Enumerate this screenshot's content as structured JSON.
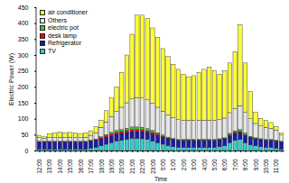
{
  "chart_data": {
    "type": "bar",
    "stacked": true,
    "grid": false,
    "legend": "top-left",
    "x_label": "Time",
    "y_label": "Electric Power (W)",
    "categories": [
      "12:00",
      null,
      "13:00",
      null,
      "14:00",
      null,
      "15:00",
      null,
      "16:00",
      null,
      "17:00",
      null,
      "18:00",
      null,
      "19:00",
      null,
      "20:00",
      null,
      "21:00",
      null,
      "22:00",
      null,
      "23:00",
      null,
      "0:00",
      null,
      "1:00",
      null,
      "2:00",
      null,
      "3:00",
      null,
      "4:00",
      null,
      "5:00",
      null,
      "6:00",
      null,
      "7:00",
      null,
      "8:00",
      null,
      "9:00",
      null,
      "10:00",
      null,
      "11:00",
      null
    ],
    "ylim": [
      0,
      450
    ],
    "yticks": [
      0,
      50,
      100,
      150,
      200,
      250,
      300,
      350,
      400,
      450
    ],
    "series": [
      {
        "name": "TV",
        "color": "#33cccc",
        "values": [
          5,
          5,
          5,
          5,
          5,
          5,
          5,
          5,
          5,
          5,
          8,
          10,
          15,
          20,
          25,
          30,
          32,
          35,
          38,
          38,
          37,
          35,
          30,
          25,
          20,
          15,
          12,
          10,
          10,
          10,
          10,
          10,
          10,
          10,
          10,
          12,
          15,
          25,
          32,
          35,
          25,
          18,
          15,
          12,
          10,
          10,
          8,
          5
        ]
      },
      {
        "name": "Refrigerator",
        "color": "#1a1aa6",
        "values": [
          22,
          22,
          22,
          22,
          22,
          22,
          22,
          22,
          22,
          22,
          22,
          22,
          22,
          22,
          22,
          22,
          22,
          22,
          22,
          22,
          22,
          22,
          22,
          22,
          22,
          22,
          22,
          22,
          22,
          22,
          22,
          22,
          22,
          22,
          22,
          22,
          22,
          22,
          22,
          22,
          22,
          22,
          22,
          22,
          22,
          22,
          22,
          22
        ]
      },
      {
        "name": "desk lamp",
        "color": "#ff0000",
        "values": [
          1,
          1,
          1,
          1,
          1,
          1,
          1,
          1,
          1,
          1,
          1,
          2,
          3,
          4,
          5,
          5,
          6,
          6,
          6,
          6,
          6,
          5,
          5,
          4,
          3,
          2,
          2,
          1,
          1,
          1,
          1,
          1,
          1,
          1,
          1,
          1,
          1,
          3,
          3,
          3,
          3,
          2,
          1,
          1,
          1,
          1,
          1,
          1
        ]
      },
      {
        "name": "electric pot",
        "color": "#33cc33",
        "values": [
          1,
          1,
          1,
          1,
          1,
          1,
          1,
          1,
          1,
          1,
          2,
          2,
          3,
          4,
          5,
          6,
          6,
          7,
          8,
          8,
          8,
          7,
          6,
          5,
          4,
          3,
          2,
          2,
          2,
          2,
          2,
          2,
          2,
          2,
          2,
          2,
          2,
          4,
          5,
          6,
          5,
          3,
          2,
          2,
          2,
          2,
          1,
          1
        ]
      },
      {
        "name": "Others",
        "color": "#e6e6e6",
        "values": [
          12,
          10,
          12,
          12,
          13,
          12,
          13,
          12,
          12,
          13,
          15,
          20,
          30,
          40,
          50,
          60,
          70,
          80,
          88,
          92,
          92,
          90,
          85,
          80,
          75,
          70,
          65,
          62,
          60,
          60,
          60,
          60,
          60,
          60,
          60,
          60,
          62,
          65,
          70,
          75,
          65,
          55,
          45,
          40,
          38,
          35,
          32,
          20
        ]
      },
      {
        "name": "air conditioner",
        "color": "#ffff33",
        "values": [
          7,
          6,
          12,
          15,
          16,
          14,
          15,
          14,
          11,
          13,
          14,
          19,
          22,
          35,
          58,
          77,
          109,
          150,
          203,
          259,
          260,
          256,
          237,
          219,
          196,
          183,
          167,
          158,
          145,
          137,
          140,
          150,
          160,
          167,
          155,
          143,
          148,
          156,
          178,
          254,
          155,
          85,
          35,
          23,
          22,
          18,
          11,
          6
        ]
      }
    ]
  }
}
